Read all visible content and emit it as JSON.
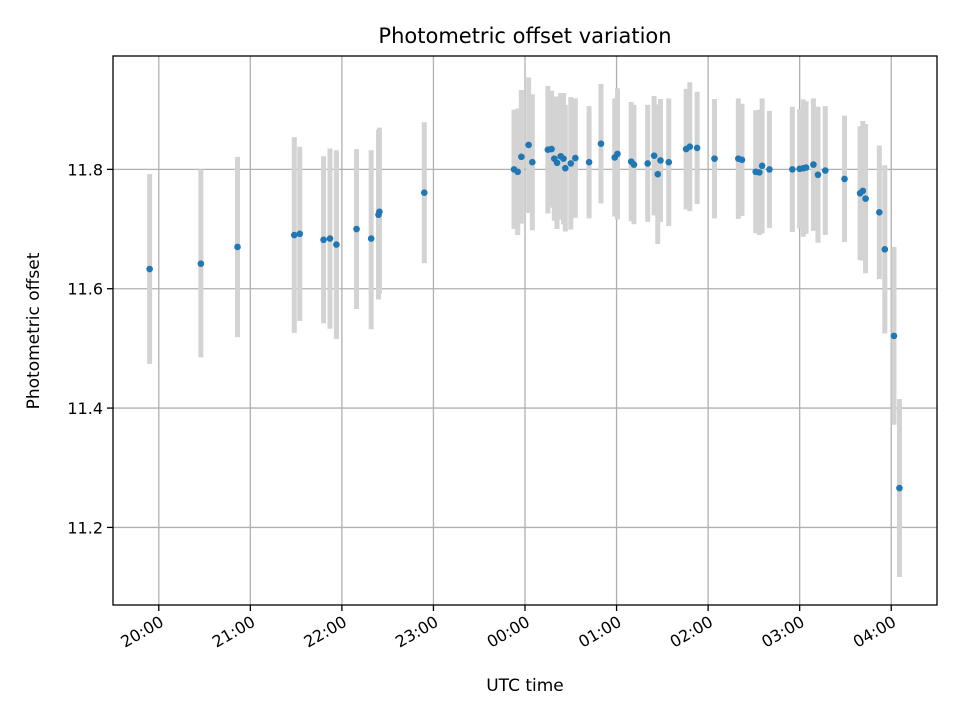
{
  "chart_data": {
    "type": "scatter",
    "title": "Photometric offset variation",
    "xlabel": "UTC time",
    "ylabel": "Photometric offset",
    "xlim_hours": [
      19.5,
      28.5
    ],
    "ylim": [
      11.07,
      11.99
    ],
    "x_ticks": [
      {
        "hour": 20,
        "label": "20:00"
      },
      {
        "hour": 21,
        "label": "21:00"
      },
      {
        "hour": 22,
        "label": "22:00"
      },
      {
        "hour": 23,
        "label": "23:00"
      },
      {
        "hour": 24,
        "label": "00:00"
      },
      {
        "hour": 25,
        "label": "01:00"
      },
      {
        "hour": 26,
        "label": "02:00"
      },
      {
        "hour": 27,
        "label": "03:00"
      },
      {
        "hour": 28,
        "label": "04:00"
      }
    ],
    "y_ticks": [
      {
        "value": 11.2,
        "label": "11.2"
      },
      {
        "value": 11.4,
        "label": "11.4"
      },
      {
        "value": 11.6,
        "label": "11.6"
      },
      {
        "value": 11.8,
        "label": "11.8"
      }
    ],
    "grid": true,
    "colors": {
      "point": "#1f77b4",
      "errorbar": "#d3d3d3"
    },
    "points": [
      {
        "t": 19.9,
        "y": 11.633,
        "lo": 11.474,
        "hi": 11.792
      },
      {
        "t": 20.46,
        "y": 11.642,
        "lo": 11.485,
        "hi": 11.8
      },
      {
        "t": 20.86,
        "y": 11.67,
        "lo": 11.519,
        "hi": 11.821
      },
      {
        "t": 21.48,
        "y": 11.69,
        "lo": 11.526,
        "hi": 11.854
      },
      {
        "t": 21.54,
        "y": 11.692,
        "lo": 11.546,
        "hi": 11.838
      },
      {
        "t": 21.8,
        "y": 11.682,
        "lo": 11.542,
        "hi": 11.822
      },
      {
        "t": 21.87,
        "y": 11.684,
        "lo": 11.533,
        "hi": 11.835
      },
      {
        "t": 21.94,
        "y": 11.674,
        "lo": 11.516,
        "hi": 11.832
      },
      {
        "t": 22.16,
        "y": 11.7,
        "lo": 11.566,
        "hi": 11.834
      },
      {
        "t": 22.32,
        "y": 11.684,
        "lo": 11.532,
        "hi": 11.832
      },
      {
        "t": 22.4,
        "y": 11.724,
        "lo": 11.582,
        "hi": 11.866
      },
      {
        "t": 22.41,
        "y": 11.729,
        "lo": 11.592,
        "hi": 11.87
      },
      {
        "t": 22.9,
        "y": 11.761,
        "lo": 11.643,
        "hi": 11.879
      },
      {
        "t": 23.88,
        "y": 11.8,
        "lo": 11.7,
        "hi": 11.9
      },
      {
        "t": 23.92,
        "y": 11.796,
        "lo": 11.69,
        "hi": 11.902
      },
      {
        "t": 23.96,
        "y": 11.821,
        "lo": 11.709,
        "hi": 11.933
      },
      {
        "t": 24.04,
        "y": 11.841,
        "lo": 11.727,
        "hi": 11.954
      },
      {
        "t": 24.08,
        "y": 11.812,
        "lo": 11.698,
        "hi": 11.926
      },
      {
        "t": 24.25,
        "y": 11.833,
        "lo": 11.726,
        "hi": 11.94
      },
      {
        "t": 24.29,
        "y": 11.834,
        "lo": 11.736,
        "hi": 11.932
      },
      {
        "t": 24.32,
        "y": 11.818,
        "lo": 11.714,
        "hi": 11.922
      },
      {
        "t": 24.35,
        "y": 11.811,
        "lo": 11.7,
        "hi": 11.922
      },
      {
        "t": 24.39,
        "y": 11.822,
        "lo": 11.716,
        "hi": 11.928
      },
      {
        "t": 24.42,
        "y": 11.818,
        "lo": 11.708,
        "hi": 11.928
      },
      {
        "t": 24.44,
        "y": 11.802,
        "lo": 11.696,
        "hi": 11.908
      },
      {
        "t": 24.5,
        "y": 11.81,
        "lo": 11.699,
        "hi": 11.921
      },
      {
        "t": 24.55,
        "y": 11.819,
        "lo": 11.719,
        "hi": 11.919
      },
      {
        "t": 24.7,
        "y": 11.812,
        "lo": 11.718,
        "hi": 11.906
      },
      {
        "t": 24.83,
        "y": 11.843,
        "lo": 11.743,
        "hi": 11.943
      },
      {
        "t": 24.98,
        "y": 11.82,
        "lo": 11.721,
        "hi": 11.919
      },
      {
        "t": 25.01,
        "y": 11.826,
        "lo": 11.716,
        "hi": 11.936
      },
      {
        "t": 25.16,
        "y": 11.813,
        "lo": 11.713,
        "hi": 11.913
      },
      {
        "t": 25.19,
        "y": 11.808,
        "lo": 11.708,
        "hi": 11.908
      },
      {
        "t": 25.34,
        "y": 11.81,
        "lo": 11.712,
        "hi": 11.908
      },
      {
        "t": 25.41,
        "y": 11.823,
        "lo": 11.723,
        "hi": 11.923
      },
      {
        "t": 25.45,
        "y": 11.792,
        "lo": 11.675,
        "hi": 11.909
      },
      {
        "t": 25.48,
        "y": 11.815,
        "lo": 11.712,
        "hi": 11.918
      },
      {
        "t": 25.57,
        "y": 11.812,
        "lo": 11.705,
        "hi": 11.919
      },
      {
        "t": 25.76,
        "y": 11.834,
        "lo": 11.733,
        "hi": 11.935
      },
      {
        "t": 25.8,
        "y": 11.838,
        "lo": 11.73,
        "hi": 11.946
      },
      {
        "t": 25.88,
        "y": 11.836,
        "lo": 11.742,
        "hi": 11.93
      },
      {
        "t": 26.07,
        "y": 11.818,
        "lo": 11.718,
        "hi": 11.918
      },
      {
        "t": 26.33,
        "y": 11.818,
        "lo": 11.717,
        "hi": 11.919
      },
      {
        "t": 26.37,
        "y": 11.816,
        "lo": 11.722,
        "hi": 11.91
      },
      {
        "t": 26.52,
        "y": 11.796,
        "lo": 11.693,
        "hi": 11.899
      },
      {
        "t": 26.56,
        "y": 11.795,
        "lo": 11.69,
        "hi": 11.9
      },
      {
        "t": 26.59,
        "y": 11.806,
        "lo": 11.693,
        "hi": 11.919
      },
      {
        "t": 26.67,
        "y": 11.8,
        "lo": 11.702,
        "hi": 11.898
      },
      {
        "t": 26.92,
        "y": 11.8,
        "lo": 11.695,
        "hi": 11.905
      },
      {
        "t": 27.0,
        "y": 11.801,
        "lo": 11.701,
        "hi": 11.901
      },
      {
        "t": 27.04,
        "y": 11.802,
        "lo": 11.687,
        "hi": 11.917
      },
      {
        "t": 27.07,
        "y": 11.803,
        "lo": 11.692,
        "hi": 11.914
      },
      {
        "t": 27.15,
        "y": 11.808,
        "lo": 11.697,
        "hi": 11.919
      },
      {
        "t": 27.2,
        "y": 11.791,
        "lo": 11.677,
        "hi": 11.905
      },
      {
        "t": 27.28,
        "y": 11.798,
        "lo": 11.69,
        "hi": 11.906
      },
      {
        "t": 27.49,
        "y": 11.784,
        "lo": 11.678,
        "hi": 11.89
      },
      {
        "t": 27.66,
        "y": 11.76,
        "lo": 11.648,
        "hi": 11.872
      },
      {
        "t": 27.69,
        "y": 11.764,
        "lo": 11.647,
        "hi": 11.881
      },
      {
        "t": 27.72,
        "y": 11.751,
        "lo": 11.626,
        "hi": 11.876
      },
      {
        "t": 27.87,
        "y": 11.728,
        "lo": 11.616,
        "hi": 11.84
      },
      {
        "t": 27.93,
        "y": 11.666,
        "lo": 11.525,
        "hi": 11.807
      },
      {
        "t": 28.03,
        "y": 11.521,
        "lo": 11.372,
        "hi": 11.67
      },
      {
        "t": 28.09,
        "y": 11.266,
        "lo": 11.117,
        "hi": 11.415
      }
    ]
  }
}
